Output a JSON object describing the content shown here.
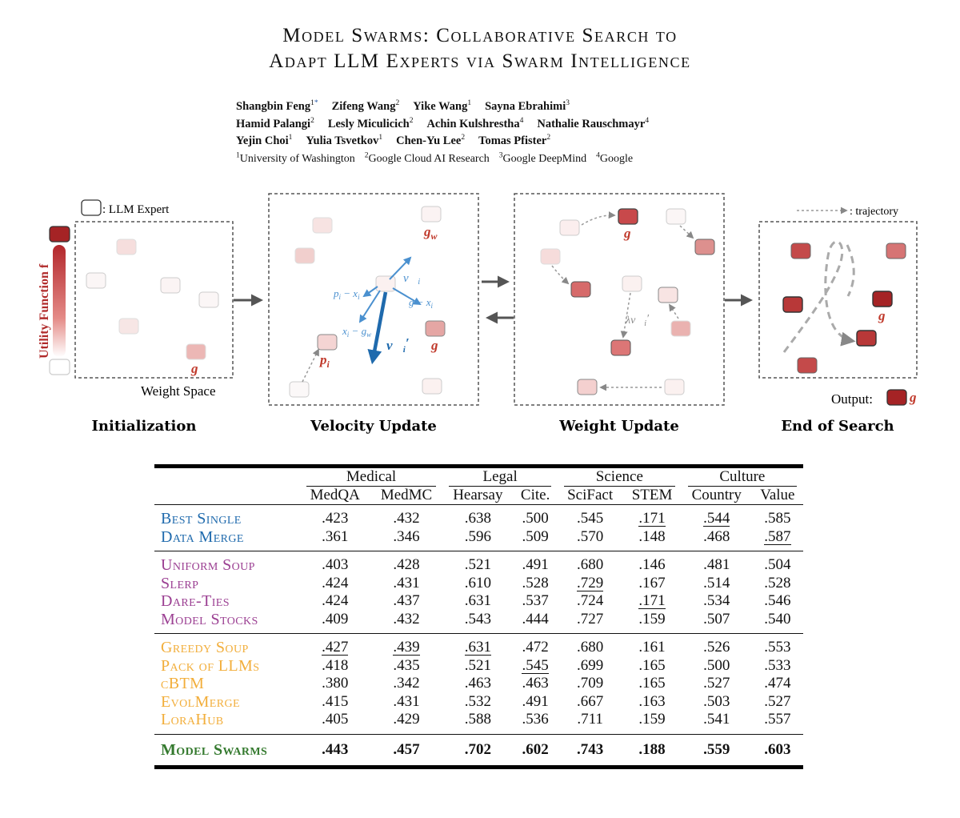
{
  "paper": {
    "title_line1": "Model Swarms: Collaborative Search to",
    "title_line2": "Adapt LLM Experts via Swarm Intelligence",
    "authors": [
      [
        {
          "name": "Shangbin Feng",
          "sup": "1",
          "mark": "*"
        },
        {
          "name": "Zifeng Wang",
          "sup": "2"
        },
        {
          "name": "Yike Wang",
          "sup": "1"
        },
        {
          "name": "Sayna Ebrahimi",
          "sup": "3"
        }
      ],
      [
        {
          "name": "Hamid Palangi",
          "sup": "2"
        },
        {
          "name": "Lesly Miculicich",
          "sup": "2"
        },
        {
          "name": "Achin Kulshrestha",
          "sup": "4"
        },
        {
          "name": "Nathalie Rauschmayr",
          "sup": "4"
        }
      ],
      [
        {
          "name": "Yejin Choi",
          "sup": "1"
        },
        {
          "name": "Yulia Tsvetkov",
          "sup": "1"
        },
        {
          "name": "Chen-Yu Lee",
          "sup": "2"
        },
        {
          "name": "Tomas Pfister",
          "sup": "2"
        }
      ]
    ],
    "affiliations": [
      {
        "sup": "1",
        "name": "University of Washington"
      },
      {
        "sup": "2",
        "name": "Google Cloud AI Research"
      },
      {
        "sup": "3",
        "name": "Google DeepMind"
      },
      {
        "sup": "4",
        "name": "Google"
      }
    ]
  },
  "figure": {
    "legend_expert": ": LLM Expert",
    "legend_trajectory": ": trajectory",
    "utility_label": "Utility Function f",
    "weight_space": "Weight Space",
    "output_label": "Output:",
    "stages": [
      "Initialization",
      "Velocity Update",
      "Weight Update",
      "End of Search"
    ],
    "colors": {
      "dark": "#b02a2a",
      "accent": "#c0392b",
      "vector": "#3b82c4",
      "box": "#555555"
    },
    "labels": {
      "g": "g",
      "gw": "g",
      "gw_sub": "w",
      "pi": "p",
      "pi_sub": "i",
      "v": "v",
      "v_sub": "i",
      "v_prime": "′",
      "lambda": "λ",
      "vec_p": "p",
      "vec_p_sub": "i",
      "vec_x": "x",
      "vec_x_sub": "i",
      "minus": " − "
    }
  },
  "table": {
    "groups": [
      {
        "label": "Medical",
        "span": 2
      },
      {
        "label": "Legal",
        "span": 2
      },
      {
        "label": "Science",
        "span": 2
      },
      {
        "label": "Culture",
        "span": 2
      }
    ],
    "columns": [
      "MedQA",
      "MedMC",
      "Hearsay",
      "Cite.",
      "SciFact",
      "STEM",
      "Country",
      "Value"
    ],
    "sections": [
      {
        "color": "blue",
        "rows": [
          {
            "method": "Best Single",
            "values": [
              ".423",
              ".432",
              ".638",
              ".500",
              ".545",
              ".171",
              ".544",
              ".585"
            ],
            "underline": [
              5,
              6
            ]
          },
          {
            "method": "Data Merge",
            "values": [
              ".361",
              ".346",
              ".596",
              ".509",
              ".570",
              ".148",
              ".468",
              ".587"
            ],
            "underline": [
              7
            ]
          }
        ]
      },
      {
        "color": "purple",
        "rows": [
          {
            "method": "Uniform Soup",
            "values": [
              ".403",
              ".428",
              ".521",
              ".491",
              ".680",
              ".146",
              ".481",
              ".504"
            ],
            "underline": []
          },
          {
            "method": "Slerp",
            "values": [
              ".424",
              ".431",
              ".610",
              ".528",
              ".729",
              ".167",
              ".514",
              ".528"
            ],
            "underline": [
              4
            ]
          },
          {
            "method": "Dare-Ties",
            "values": [
              ".424",
              ".437",
              ".631",
              ".537",
              ".724",
              ".171",
              ".534",
              ".546"
            ],
            "underline": [
              5
            ]
          },
          {
            "method": "Model Stocks",
            "values": [
              ".409",
              ".432",
              ".543",
              ".444",
              ".727",
              ".159",
              ".507",
              ".540"
            ],
            "underline": []
          }
        ]
      },
      {
        "color": "orange",
        "rows": [
          {
            "method": "Greedy Soup",
            "values": [
              ".427",
              ".439",
              ".631",
              ".472",
              ".680",
              ".161",
              ".526",
              ".553"
            ],
            "underline": [
              0,
              1,
              2
            ]
          },
          {
            "method": "Pack of LLMs",
            "values": [
              ".418",
              ".435",
              ".521",
              ".545",
              ".699",
              ".165",
              ".500",
              ".533"
            ],
            "underline": [
              3
            ]
          },
          {
            "method": "cBTM",
            "values": [
              ".380",
              ".342",
              ".463",
              ".463",
              ".709",
              ".165",
              ".527",
              ".474"
            ],
            "underline": []
          },
          {
            "method": "EvolMerge",
            "values": [
              ".415",
              ".431",
              ".532",
              ".491",
              ".667",
              ".163",
              ".503",
              ".527"
            ],
            "underline": []
          },
          {
            "method": "LoraHub",
            "values": [
              ".405",
              ".429",
              ".588",
              ".536",
              ".711",
              ".159",
              ".541",
              ".557"
            ],
            "underline": []
          }
        ]
      },
      {
        "color": "green",
        "bold": true,
        "rows": [
          {
            "method": "Model Swarms",
            "values": [
              ".443",
              ".457",
              ".702",
              ".602",
              ".743",
              ".188",
              ".559",
              ".603"
            ],
            "underline": []
          }
        ]
      }
    ]
  }
}
